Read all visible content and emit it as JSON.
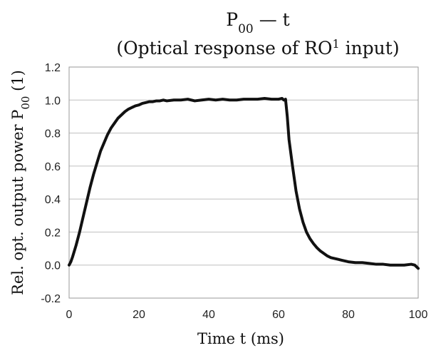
{
  "chart_data": {
    "type": "line",
    "title_main": "P",
    "title_main_sub": "00",
    "title_main_suffix": " — t",
    "title_sub_prefix": "(Optical response of RO",
    "title_sub_sup": "1",
    "title_sub_suffix": " input)",
    "xlabel": "Time  t (ms)",
    "ylabel_prefix": "Rel. opt. output power P",
    "ylabel_sub": "00",
    "ylabel_suffix": " (1)",
    "xlim": [
      0,
      100
    ],
    "ylim": [
      -0.2,
      1.2
    ],
    "xticks": [
      "0",
      "20",
      "40",
      "60",
      "80",
      "100"
    ],
    "yticks": [
      "-0.2",
      "0.0",
      "0.2",
      "0.4",
      "0.6",
      "0.8",
      "1.0",
      "1.2"
    ],
    "grid": "horizontal",
    "legend": "none",
    "color": "#111111",
    "series": [
      {
        "x": [
          0,
          0.5,
          1,
          2,
          3,
          4,
          5,
          6,
          7,
          8,
          9,
          10,
          11,
          12,
          13,
          14,
          15,
          16,
          17,
          18,
          19,
          20,
          21,
          22,
          23,
          24,
          25,
          26,
          27,
          28,
          30,
          32,
          34,
          36,
          38,
          40,
          42,
          44,
          46,
          48,
          50,
          52,
          54,
          56,
          58,
          60,
          61,
          61.5,
          62,
          62.5,
          63,
          64,
          65,
          66,
          67,
          68,
          69,
          70,
          71,
          72,
          73,
          74,
          75,
          76,
          77,
          78,
          80,
          82,
          84,
          86,
          88,
          90,
          92,
          94,
          96,
          98,
          99,
          100
        ],
        "y": [
          0.0,
          0.02,
          0.05,
          0.12,
          0.2,
          0.29,
          0.38,
          0.47,
          0.55,
          0.62,
          0.69,
          0.74,
          0.79,
          0.83,
          0.86,
          0.89,
          0.91,
          0.93,
          0.945,
          0.955,
          0.965,
          0.97,
          0.98,
          0.985,
          0.99,
          0.99,
          0.995,
          0.995,
          1.0,
          0.995,
          1.0,
          1.0,
          1.005,
          0.995,
          1.0,
          1.005,
          1.0,
          1.005,
          1.0,
          1.0,
          1.005,
          1.005,
          1.005,
          1.01,
          1.005,
          1.005,
          1.01,
          1.0,
          1.005,
          0.9,
          0.76,
          0.6,
          0.45,
          0.34,
          0.26,
          0.2,
          0.16,
          0.13,
          0.105,
          0.085,
          0.07,
          0.055,
          0.045,
          0.04,
          0.035,
          0.03,
          0.02,
          0.015,
          0.015,
          0.01,
          0.005,
          0.005,
          0.0,
          0.0,
          0.0,
          0.005,
          0.0,
          -0.02
        ]
      }
    ]
  }
}
